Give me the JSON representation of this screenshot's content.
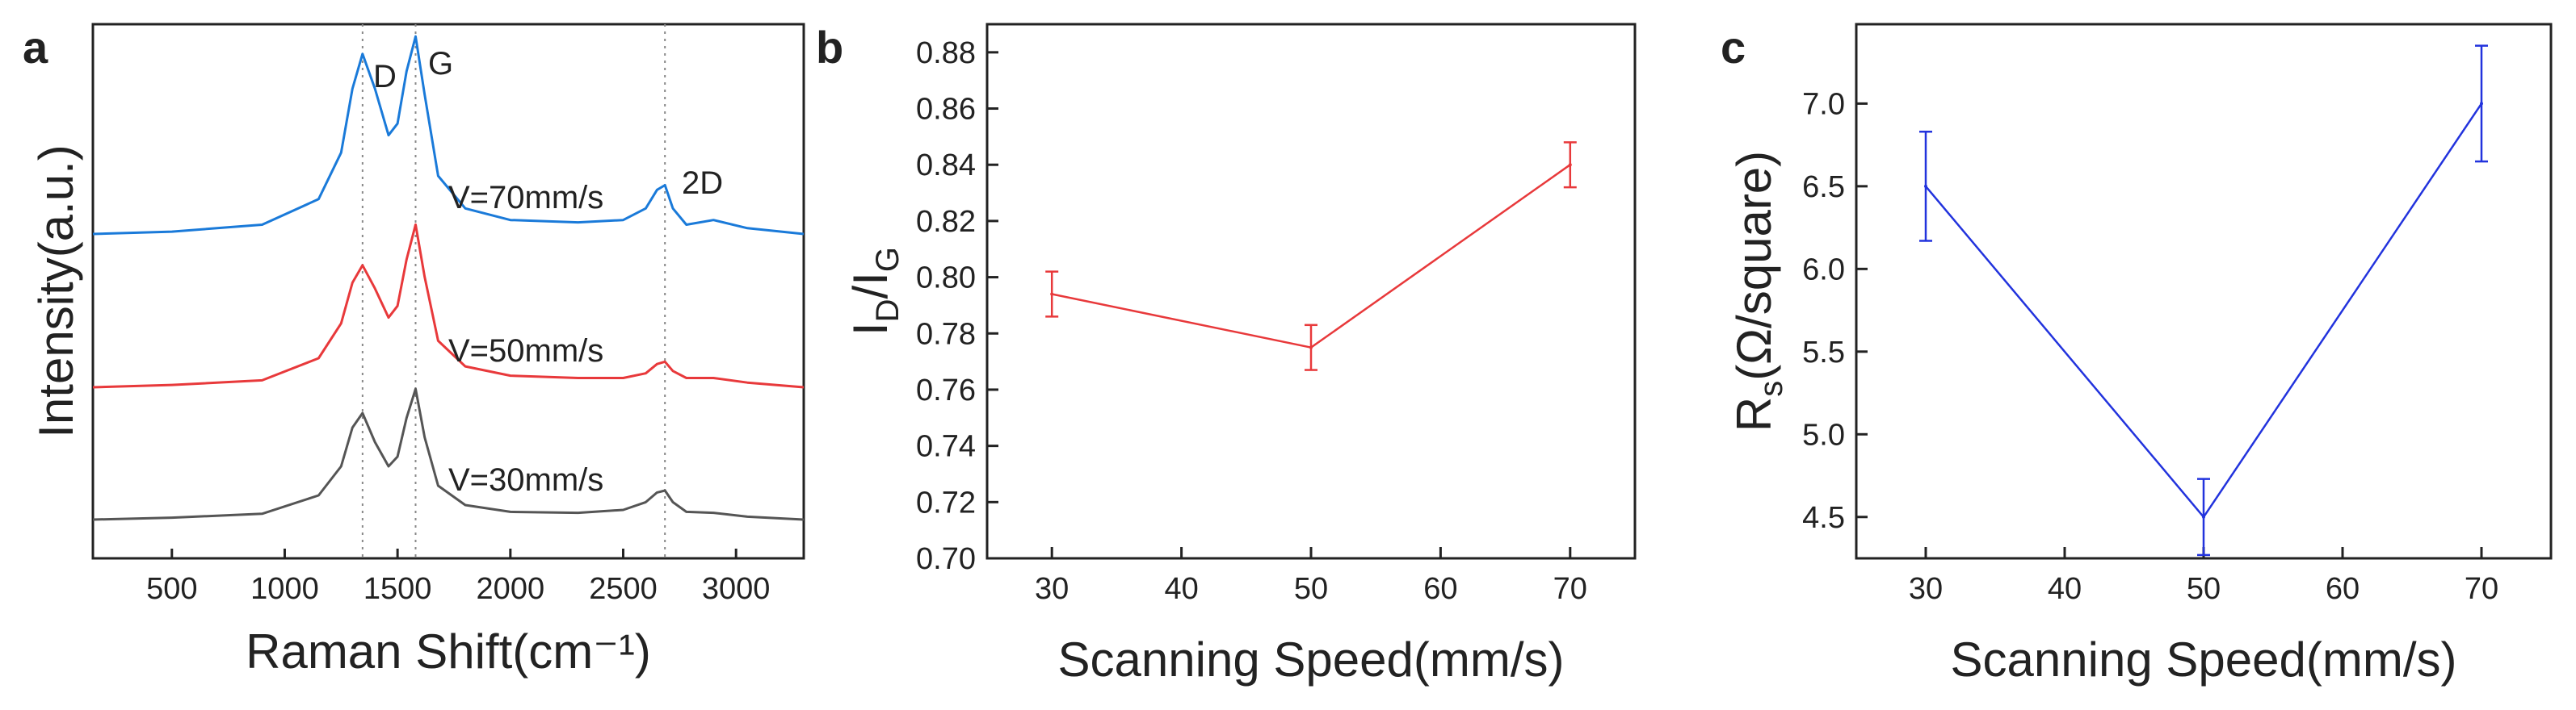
{
  "chart_data": [
    {
      "type": "line",
      "panel": "a",
      "xlabel": "Raman Shift(cm⁻¹)",
      "ylabel": "Intensity(a.u.)",
      "xlim": [
        150,
        3300
      ],
      "x_ticks": [
        500,
        1000,
        1500,
        2000,
        2500,
        3000
      ],
      "grid": false,
      "reference_lines": [
        1345,
        1580,
        2685
      ],
      "peak_labels": [
        "D",
        "G",
        "2D"
      ],
      "series": [
        {
          "name": "V=70mm/s",
          "color": "#1a7ad9",
          "x": [
            150,
            500,
            900,
            1150,
            1250,
            1300,
            1345,
            1400,
            1460,
            1500,
            1540,
            1580,
            1620,
            1680,
            1800,
            2000,
            2300,
            2500,
            2600,
            2650,
            2685,
            2720,
            2780,
            2900,
            3050,
            3300
          ],
          "y": [
            0.0,
            0.02,
            0.08,
            0.3,
            0.7,
            1.25,
            1.55,
            1.25,
            0.85,
            0.95,
            1.4,
            1.7,
            1.2,
            0.5,
            0.22,
            0.12,
            0.1,
            0.12,
            0.22,
            0.38,
            0.42,
            0.22,
            0.08,
            0.12,
            0.05,
            0.0
          ]
        },
        {
          "name": "V=50mm/s",
          "color": "#e8393b",
          "x": [
            150,
            500,
            900,
            1150,
            1250,
            1300,
            1345,
            1400,
            1460,
            1500,
            1540,
            1580,
            1620,
            1680,
            1800,
            2000,
            2300,
            2500,
            2600,
            2650,
            2685,
            2720,
            2780,
            2900,
            3050,
            3300
          ],
          "y": [
            0.0,
            0.02,
            0.06,
            0.25,
            0.55,
            0.9,
            1.05,
            0.85,
            0.6,
            0.7,
            1.1,
            1.4,
            0.95,
            0.4,
            0.18,
            0.1,
            0.08,
            0.08,
            0.12,
            0.2,
            0.22,
            0.14,
            0.08,
            0.08,
            0.04,
            0.0
          ]
        },
        {
          "name": "V=30mm/s",
          "color": "#555555",
          "x": [
            150,
            500,
            900,
            1150,
            1250,
            1300,
            1345,
            1400,
            1460,
            1500,
            1540,
            1580,
            1620,
            1680,
            1800,
            2000,
            2300,
            2500,
            2600,
            2650,
            2685,
            2720,
            2780,
            2900,
            3050,
            3300
          ],
          "y": [
            0.0,
            0.02,
            0.06,
            0.25,
            0.55,
            0.95,
            1.1,
            0.8,
            0.55,
            0.65,
            1.05,
            1.35,
            0.85,
            0.35,
            0.15,
            0.08,
            0.07,
            0.1,
            0.18,
            0.28,
            0.3,
            0.18,
            0.08,
            0.07,
            0.03,
            0.0
          ]
        }
      ]
    },
    {
      "type": "line",
      "panel": "b",
      "xlabel": "Scanning Speed(mm/s)",
      "ylabel_main": "I",
      "ylabel_sub1": "D",
      "ylabel_slash": "/I",
      "ylabel_sub2": "G",
      "xlim": [
        25,
        75
      ],
      "ylim": [
        0.7,
        0.89
      ],
      "x_ticks": [
        30,
        40,
        50,
        60,
        70
      ],
      "y_ticks": [
        "0.70",
        "0.72",
        "0.74",
        "0.76",
        "0.78",
        "0.80",
        "0.82",
        "0.84",
        "0.86",
        "0.88"
      ],
      "color": "#e8393b",
      "x": [
        30,
        50,
        70
      ],
      "y": [
        0.794,
        0.775,
        0.84
      ],
      "yerr": [
        0.008,
        0.008,
        0.008
      ]
    },
    {
      "type": "line",
      "panel": "c",
      "xlabel": "Scanning Speed(mm/s)",
      "ylabel_main": "R",
      "ylabel_sub": "s",
      "ylabel_rest": "(Ω/square)",
      "xlim": [
        25,
        75
      ],
      "ylim": [
        4.25,
        7.48
      ],
      "x_ticks": [
        30,
        40,
        50,
        60,
        70
      ],
      "y_ticks": [
        "4.5",
        "5.0",
        "5.5",
        "6.0",
        "6.5",
        "7.0"
      ],
      "color": "#2233dd",
      "x": [
        30,
        50,
        70
      ],
      "y": [
        6.5,
        4.5,
        7.0
      ],
      "yerr": [
        0.33,
        0.23,
        0.35
      ]
    }
  ],
  "labels": {
    "panel_a": "a",
    "panel_b": "b",
    "panel_c": "c",
    "peak_d": "D",
    "peak_g": "G",
    "peak_2d": "2D",
    "series_70": "V=70mm/s",
    "series_50": "V=50mm/s",
    "series_30": "V=30mm/s"
  }
}
